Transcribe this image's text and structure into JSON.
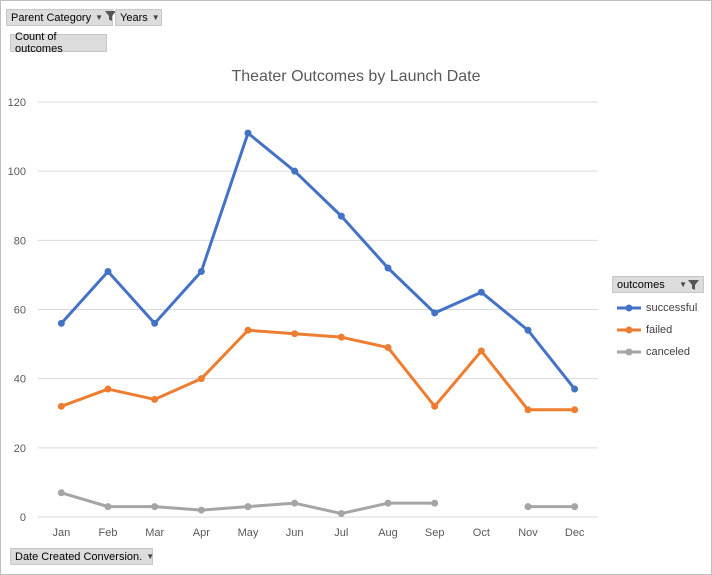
{
  "filters": {
    "parent_category": "Parent Category",
    "years": "Years"
  },
  "value_field": "Count of outcomes",
  "axis_field": "Date Created Conversion.",
  "legend": {
    "title": "outcomes"
  },
  "colors": {
    "successful": "#4472C4",
    "failed": "#ED7D31",
    "canceled": "#A5A5A5",
    "gridline": "#D9D9D9",
    "text": "#595959"
  },
  "chart_data": {
    "type": "line",
    "title": "Theater Outcomes by Launch Date",
    "xlabel": "",
    "ylabel": "",
    "categories": [
      "Jan",
      "Feb",
      "Mar",
      "Apr",
      "May",
      "Jun",
      "Jul",
      "Aug",
      "Sep",
      "Oct",
      "Nov",
      "Dec"
    ],
    "ylim": [
      0,
      120
    ],
    "yticks": [
      0,
      20,
      40,
      60,
      80,
      100,
      120
    ],
    "grid": true,
    "legend_position": "right",
    "series": [
      {
        "name": "successful",
        "values": [
          56,
          71,
          56,
          71,
          111,
          100,
          87,
          72,
          59,
          65,
          54,
          37
        ]
      },
      {
        "name": "failed",
        "values": [
          32,
          37,
          34,
          40,
          54,
          53,
          52,
          49,
          32,
          48,
          31,
          31
        ]
      },
      {
        "name": "canceled",
        "values": [
          7,
          3,
          3,
          2,
          3,
          4,
          1,
          4,
          4,
          null,
          3,
          3
        ]
      }
    ]
  }
}
